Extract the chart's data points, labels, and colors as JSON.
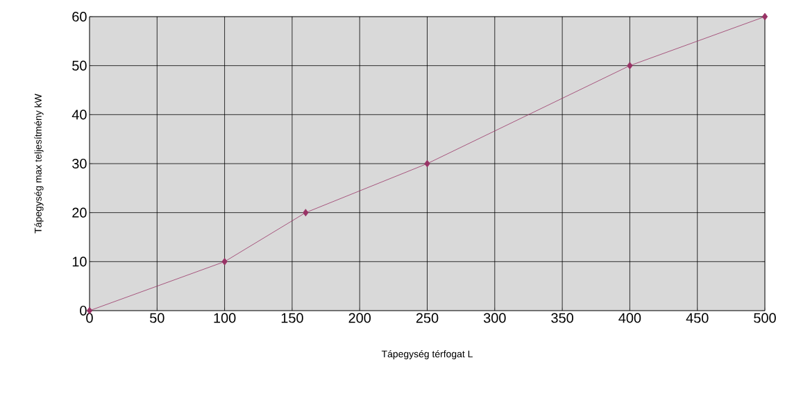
{
  "chart_data": {
    "type": "line",
    "xlabel": "Tápegység térfogat L",
    "ylabel": "Tápegység max teljesítmény kW",
    "x": [
      0,
      100,
      160,
      250,
      400,
      500
    ],
    "series": [
      {
        "color": "#993366",
        "values": [
          0,
          10,
          20,
          30,
          50,
          60
        ]
      }
    ],
    "xlim": [
      0,
      500
    ],
    "ylim": [
      0,
      60
    ],
    "xticks": [
      0,
      50,
      100,
      150,
      200,
      250,
      300,
      350,
      400,
      450,
      500
    ],
    "yticks": [
      0,
      10,
      20,
      30,
      40,
      50,
      60
    ],
    "grid": true,
    "marker": "diamond",
    "line_style": "solid"
  }
}
